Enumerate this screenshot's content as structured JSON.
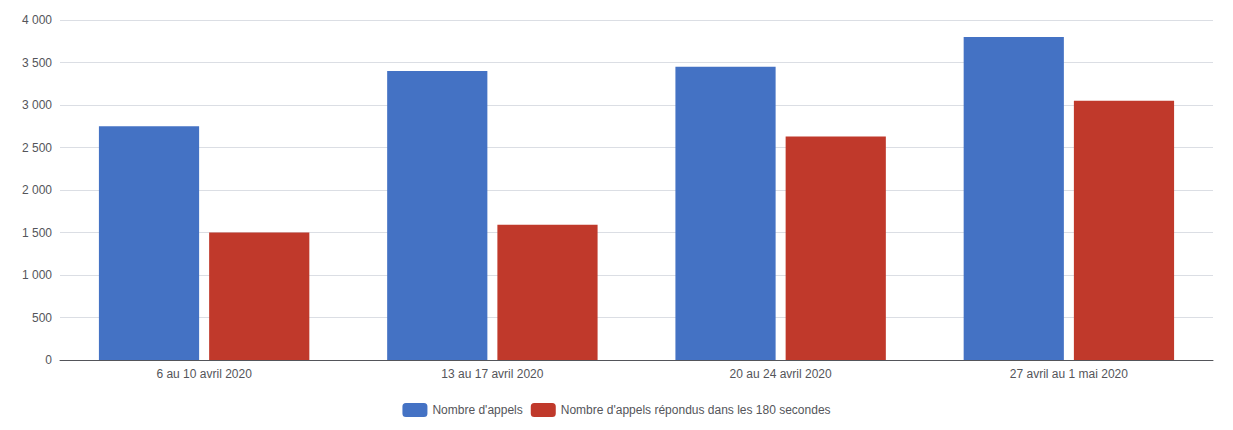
{
  "chart_data": {
    "type": "bar",
    "categories": [
      "6 au 10 avril 2020",
      "13 au 17 avril 2020",
      "20 au 24 avril 2020",
      "27 avril au 1 mai 2020"
    ],
    "series": [
      {
        "name": "Nombre d'appels",
        "color": "#4472C4",
        "values": [
          2750,
          3400,
          3450,
          3800
        ]
      },
      {
        "name": "Nombre d'appels répondus dans les 180 secondes",
        "color": "#C0392B",
        "values": [
          1500,
          1590,
          2630,
          3050
        ]
      }
    ],
    "ylim": [
      0,
      4000
    ],
    "yticks": [
      0,
      500,
      {
        "value": 1000,
        "label": "1 000"
      },
      {
        "value": 1500,
        "label": "1 500"
      },
      {
        "value": 2000,
        "label": "2 000"
      },
      {
        "value": 2500,
        "label": "2 500"
      },
      {
        "value": 3000,
        "label": "3 000"
      },
      {
        "value": 3500,
        "label": "3 500"
      },
      {
        "value": 4000,
        "label": "4 000"
      }
    ],
    "grid": true,
    "legend": "bottom"
  }
}
